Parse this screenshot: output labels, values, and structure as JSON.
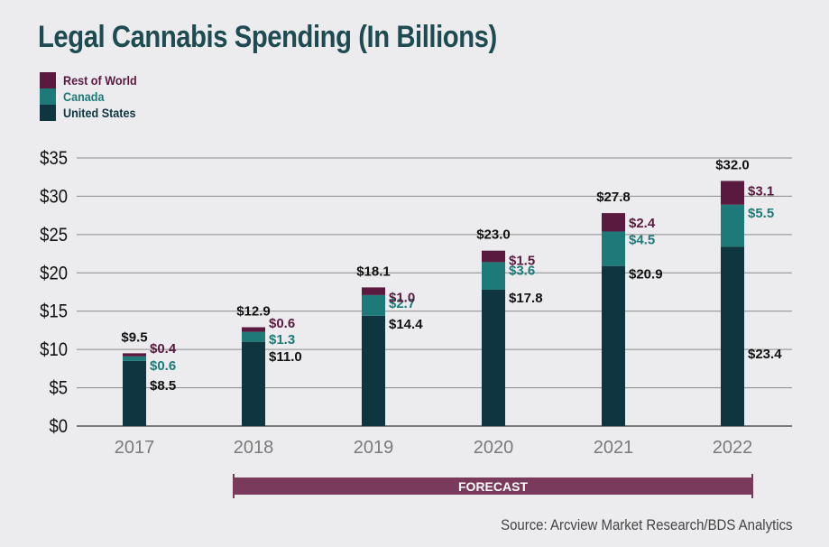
{
  "chart_data": {
    "type": "bar",
    "stacked": true,
    "title": "Legal Cannabis Spending (In Billions)",
    "categories": [
      "2017",
      "2018",
      "2019",
      "2020",
      "2021",
      "2022"
    ],
    "series": [
      {
        "name": "United States",
        "color": "#0f3540",
        "values": [
          8.5,
          11.0,
          14.4,
          17.8,
          20.9,
          23.4
        ],
        "labels": [
          "$8.5",
          "$11.0",
          "$14.4",
          "$17.8",
          "$20.9",
          "$23.4"
        ]
      },
      {
        "name": "Canada",
        "color": "#1e7a78",
        "values": [
          0.6,
          1.3,
          2.7,
          3.6,
          4.5,
          5.5
        ],
        "labels": [
          "$0.6",
          "$1.3",
          "$2.7",
          "$3.6",
          "$4.5",
          "$5.5"
        ]
      },
      {
        "name": "Rest of World",
        "color": "#5a1a3f",
        "values": [
          0.4,
          0.6,
          1.0,
          1.5,
          2.4,
          3.1
        ],
        "labels": [
          "$0.4",
          "$0.6",
          "$1.0",
          "$1.5",
          "$2.4",
          "$3.1"
        ]
      }
    ],
    "totals": [
      "$9.5",
      "$12.9",
      "$18.1",
      "$23.0",
      "$27.8",
      "$32.0"
    ],
    "yticks": [
      "$0",
      "$5",
      "$10",
      "$15",
      "$20",
      "$25",
      "$30",
      "$35"
    ],
    "ylim": [
      0,
      35
    ],
    "forecast_label": "FORECAST",
    "forecast_range": [
      "2018",
      "2022"
    ]
  },
  "legend": [
    {
      "label": "Rest of World",
      "color": "#5a1a3f"
    },
    {
      "label": "Canada",
      "color": "#1e7a78"
    },
    {
      "label": "United States",
      "color": "#0f3540"
    }
  ],
  "source": "Source: Arcview Market Research/BDS Analytics",
  "colors": {
    "grid": "#8a8a8a",
    "forecast": "#7a3a5c",
    "axis_label": "#7a7a7a"
  }
}
